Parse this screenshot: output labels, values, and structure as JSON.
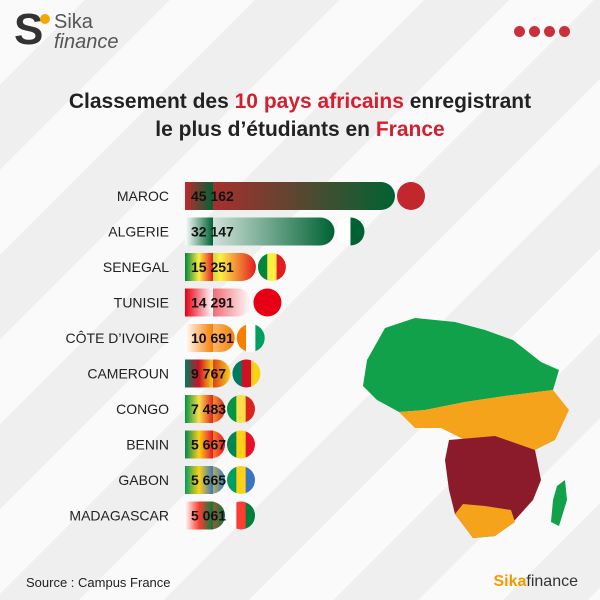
{
  "logo": {
    "letter": "S",
    "word1": "Sika",
    "word2": "finance"
  },
  "social_icons": [
    "twitter-icon",
    "youtube-icon",
    "facebook-icon",
    "instagram-icon"
  ],
  "title": {
    "line1_a": "Classement des ",
    "line1_highlight": "10 pays africains",
    "line1_b": " enregistrant",
    "line2_a": "le plus d’étudiants en ",
    "line2_highlight": "France"
  },
  "chart_data": {
    "type": "bar",
    "orientation": "horizontal",
    "categories": [
      "MAROC",
      "ALGERIE",
      "SENEGAL",
      "TUNISIE",
      "CÔTE D’IVOIRE",
      "CAMEROUN",
      "CONGO",
      "BENIN",
      "GABON",
      "MADAGASCAR"
    ],
    "values": [
      45162,
      32147,
      15251,
      14291,
      10691,
      9767,
      7483,
      5667,
      5665,
      5061
    ],
    "labels": [
      "45 162",
      "32 147",
      "15 251",
      "14 291",
      "10 691",
      "9 767",
      "7 483",
      "5 667",
      "5 665",
      "5 061"
    ],
    "flag_colors": [
      [
        "#c1272d"
      ],
      [
        "#ffffff",
        "#006233"
      ],
      [
        "#00853f",
        "#fdef42",
        "#e31b23"
      ],
      [
        "#e70013"
      ],
      [
        "#f77f00",
        "#ffffff",
        "#009e60"
      ],
      [
        "#007a5e",
        "#ce1126",
        "#fcd116"
      ],
      [
        "#009543",
        "#fbde4a",
        "#dc241f"
      ],
      [
        "#008751",
        "#fcd116",
        "#e8112d"
      ],
      [
        "#009e60",
        "#fcd116",
        "#3a75c4"
      ],
      [
        "#ffffff",
        "#fc3d32",
        "#007e3a"
      ]
    ],
    "bar_gradients": [
      [
        "#c1272d",
        "#006233"
      ],
      [
        "#ffffff",
        "#006233"
      ],
      [
        "#00853f",
        "#fdef42",
        "#e31b23"
      ],
      [
        "#e70013",
        "#ffffff"
      ],
      [
        "#ffffff",
        "#f77f00"
      ],
      [
        "#007a5e",
        "#ce1126",
        "#fcd116"
      ],
      [
        "#009543",
        "#fbde4a",
        "#dc241f"
      ],
      [
        "#008751",
        "#fcd116",
        "#e8112d"
      ],
      [
        "#009e60",
        "#fcd116",
        "#3a75c4"
      ],
      [
        "#ffffff",
        "#fc3d32",
        "#007e3a"
      ]
    ]
  },
  "source": "Source : Campus France",
  "brand": {
    "a": "Sika",
    "b": "finance"
  }
}
